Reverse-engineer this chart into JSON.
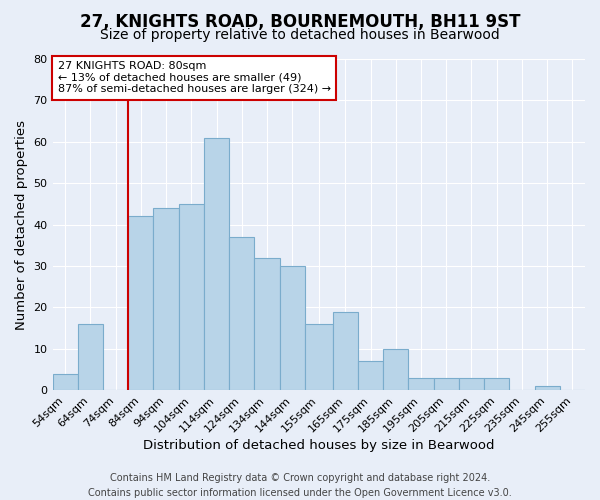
{
  "title": "27, KNIGHTS ROAD, BOURNEMOUTH, BH11 9ST",
  "subtitle": "Size of property relative to detached houses in Bearwood",
  "xlabel": "Distribution of detached houses by size in Bearwood",
  "ylabel": "Number of detached properties",
  "footer_line1": "Contains HM Land Registry data © Crown copyright and database right 2024.",
  "footer_line2": "Contains public sector information licensed under the Open Government Licence v3.0.",
  "bin_labels": [
    "54sqm",
    "64sqm",
    "74sqm",
    "84sqm",
    "94sqm",
    "104sqm",
    "114sqm",
    "124sqm",
    "134sqm",
    "144sqm",
    "155sqm",
    "165sqm",
    "175sqm",
    "185sqm",
    "195sqm",
    "205sqm",
    "215sqm",
    "225sqm",
    "235sqm",
    "245sqm",
    "255sqm"
  ],
  "bin_left_edges": [
    49,
    59,
    69,
    79,
    89,
    99,
    109,
    119,
    129,
    139,
    149,
    160,
    170,
    180,
    190,
    200,
    210,
    220,
    230,
    240,
    250
  ],
  "bin_widths": [
    10,
    10,
    10,
    10,
    10,
    10,
    10,
    10,
    10,
    10,
    11,
    10,
    10,
    10,
    10,
    10,
    10,
    10,
    10,
    10,
    10
  ],
  "counts": [
    4,
    16,
    0,
    42,
    44,
    45,
    61,
    37,
    32,
    30,
    16,
    19,
    7,
    10,
    3,
    3,
    3,
    3,
    0,
    1,
    0
  ],
  "bar_color": "#b8d4e8",
  "bar_edge_color": "#7aaccc",
  "vline_x": 79,
  "vline_color": "#cc0000",
  "annotation_line1": "27 KNIGHTS ROAD: 80sqm",
  "annotation_line2": "← 13% of detached houses are smaller (49)",
  "annotation_line3": "87% of semi-detached houses are larger (324) →",
  "annotation_box_color": "#ffffff",
  "annotation_box_edge": "#cc0000",
  "ylim": [
    0,
    80
  ],
  "xlim": [
    49,
    260
  ],
  "yticks": [
    0,
    10,
    20,
    30,
    40,
    50,
    60,
    70,
    80
  ],
  "title_fontsize": 12,
  "subtitle_fontsize": 10,
  "label_fontsize": 9.5,
  "tick_fontsize": 8,
  "footer_fontsize": 7,
  "bg_color": "#e8eef8",
  "grid_color": "#ffffff"
}
